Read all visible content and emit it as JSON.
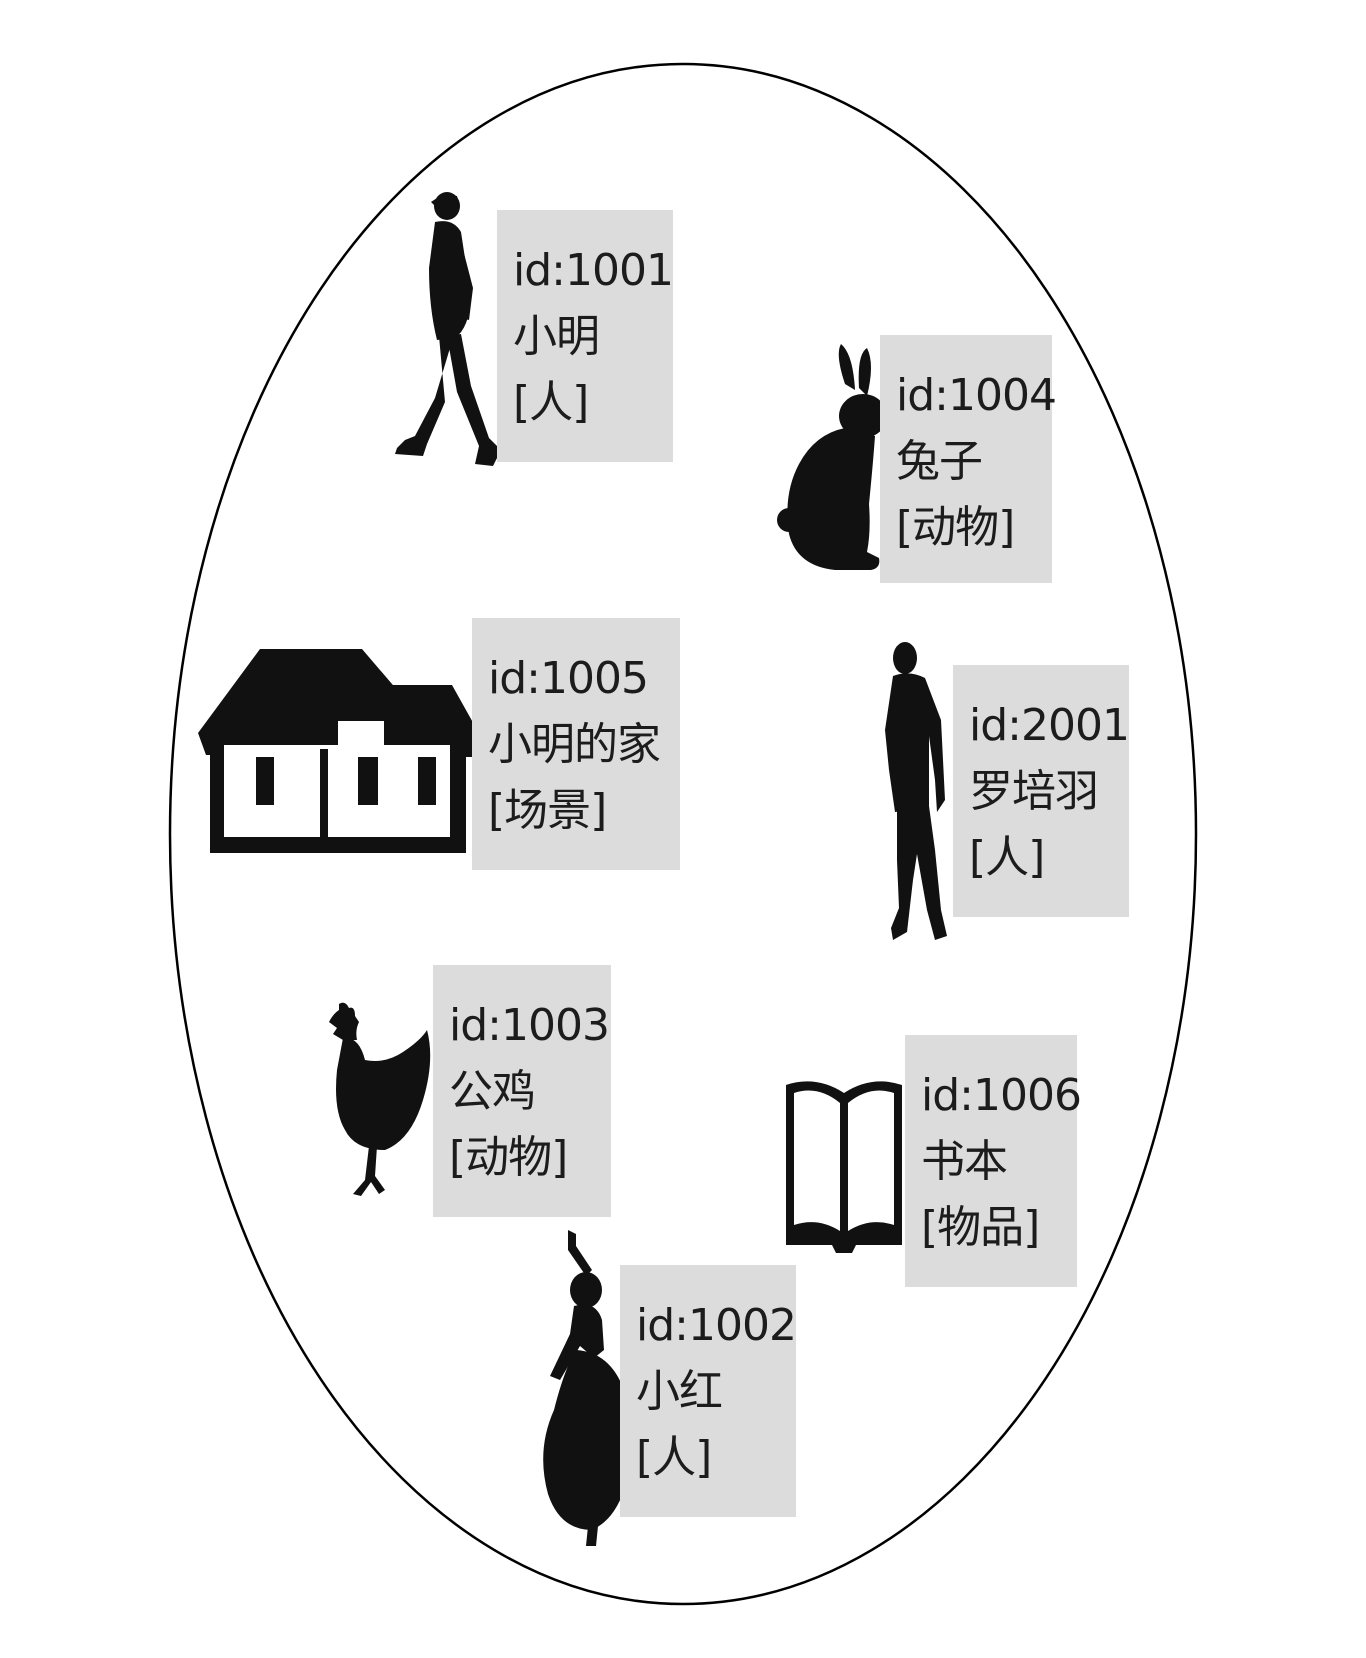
{
  "colors": {
    "background": "#ffffff",
    "outline": "#000000",
    "card": "#dcdcdc",
    "silhouette": "#111111",
    "text": "#1c1c1c"
  },
  "entities": [
    {
      "key": "xiaoming",
      "id_text": "id:1001",
      "name": "小明",
      "type": "[人]",
      "icon": "walking-man-icon"
    },
    {
      "key": "rabbit",
      "id_text": "id:1004",
      "name": "兔子",
      "type": "[动物]",
      "icon": "rabbit-icon"
    },
    {
      "key": "home",
      "id_text": "id:1005",
      "name": "小明的家",
      "type": "[场景]",
      "icon": "house-icon"
    },
    {
      "key": "luopeiyu",
      "id_text": "id:2001",
      "name": "罗培羽",
      "type": "[人]",
      "icon": "standing-man-icon"
    },
    {
      "key": "rooster",
      "id_text": "id:1003",
      "name": "公鸡",
      "type": "[动物]",
      "icon": "chicken-icon"
    },
    {
      "key": "book",
      "id_text": "id:1006",
      "name": "书本",
      "type": "[物品]",
      "icon": "open-book-icon"
    },
    {
      "key": "xiaohong",
      "id_text": "id:1002",
      "name": "小红",
      "type": "[人]",
      "icon": "dancing-woman-icon"
    }
  ]
}
